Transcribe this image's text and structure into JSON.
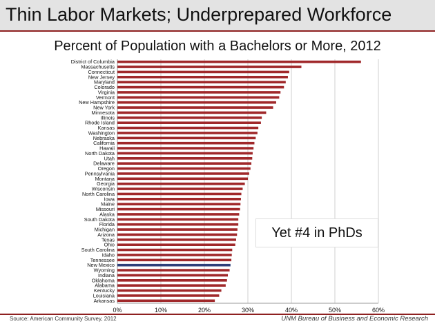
{
  "header": {
    "title": "Thin Labor Markets; Underprepared Workforce"
  },
  "annotation": "Yet #4 in PhDs",
  "footer": {
    "source": "Source: American Community Survey, 2012",
    "credit": "UNM Bureau of Business and Economic Research"
  },
  "colors": {
    "bar": "#a0282a",
    "highlight": "#2d3f7a",
    "accent_rule": "#8e2020"
  },
  "chart_data": {
    "type": "bar",
    "orientation": "horizontal",
    "title": "Percent of Population with a Bachelors or More, 2012",
    "highlight": "New Mexico",
    "xlim": [
      0,
      60
    ],
    "xticks": [
      "0%",
      "10%",
      "20%",
      "30%",
      "40%",
      "50%",
      "60%"
    ],
    "grid": true,
    "categories": [
      "District of Columbia",
      "Massachusetts",
      "Connecticut",
      "New Jersey",
      "Maryland",
      "Colorado",
      "Virginia",
      "Vermont",
      "New Hampshire",
      "New York",
      "Minnesota",
      "Illinois",
      "Rhode Island",
      "Kansas",
      "Washington",
      "Nebraska",
      "California",
      "Hawaii",
      "North Dakota",
      "Utah",
      "Delaware",
      "Oregon",
      "Pennsylvania",
      "Montana",
      "Georgia",
      "Wisconsin",
      "North Carolina",
      "Iowa",
      "Maine",
      "Missouri",
      "Alaska",
      "South Dakota",
      "Florida",
      "Michigan",
      "Arizona",
      "Texas",
      "Ohio",
      "South Carolina",
      "Idaho",
      "Tennessee",
      "New Mexico",
      "Wyoming",
      "Indiana",
      "Oklahoma",
      "Alabama",
      "Kentucky",
      "Louisiana",
      "Arkansas"
    ],
    "values": [
      56.0,
      42.3,
      39.5,
      39.2,
      38.7,
      38.3,
      37.5,
      37.2,
      36.5,
      35.8,
      34.2,
      33.2,
      33.0,
      32.4,
      32.2,
      31.8,
      31.5,
      31.3,
      31.1,
      31.0,
      30.8,
      30.6,
      30.3,
      30.0,
      29.3,
      28.8,
      28.5,
      28.4,
      28.3,
      28.2,
      28.0,
      27.8,
      27.8,
      27.6,
      27.5,
      27.3,
      27.1,
      26.4,
      26.3,
      26.2,
      26.0,
      25.8,
      25.4,
      25.2,
      24.9,
      23.9,
      23.4,
      22.4
    ]
  }
}
